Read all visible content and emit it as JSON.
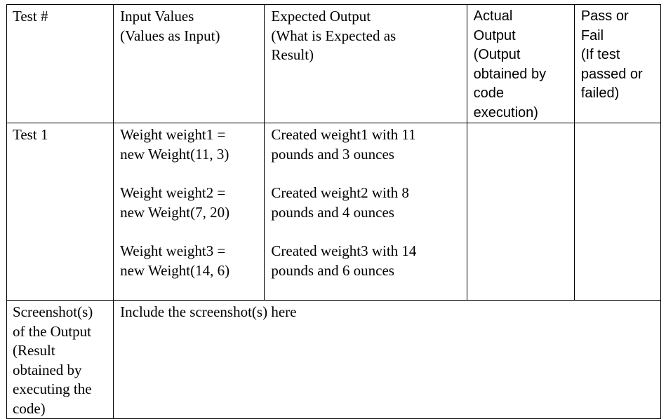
{
  "header": {
    "col1": [
      "Test #"
    ],
    "col2": [
      "Input Values",
      "(Values as Input)"
    ],
    "col3": [
      "Expected Output",
      "(What is Expected as",
      "Result)"
    ],
    "col4": [
      "Actual",
      "Output",
      "(Output",
      "obtained by",
      "code",
      "execution)"
    ],
    "col5": [
      "Pass or",
      "Fail",
      "(If test",
      "passed or",
      "failed)"
    ]
  },
  "test1": {
    "label": "Test 1",
    "inputs": [
      [
        "Weight weight1 =",
        "new Weight(11, 3)"
      ],
      [
        "Weight weight2 =",
        "new Weight(7, 20)"
      ],
      [
        "Weight weight3 =",
        "new Weight(14, 6)"
      ]
    ],
    "expected": [
      [
        "Created weight1 with 11",
        "pounds and 3 ounces"
      ],
      [
        "Created weight2 with 8",
        "pounds and 4 ounces"
      ],
      [
        "Created weight3 with 14",
        "pounds and 6 ounces"
      ]
    ],
    "actual": "",
    "pass_fail": ""
  },
  "screenshot": {
    "label": [
      "Screenshot(s)",
      "of the Output",
      "(Result",
      "obtained by",
      "executing the",
      "code)"
    ],
    "content": "Include the screenshot(s) here"
  }
}
